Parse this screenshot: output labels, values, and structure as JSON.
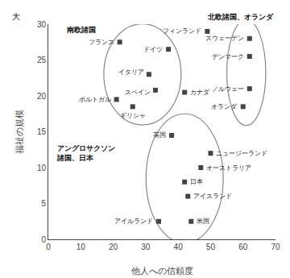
{
  "chart_data": {
    "type": "scatter",
    "x_label": "他人への信頼度",
    "y_label": "福祉の規模",
    "annotations": [
      {
        "text": "大"
      }
    ],
    "xlim": [
      0,
      70
    ],
    "ylim": [
      0,
      30
    ],
    "xticks": [
      0,
      10,
      20,
      30,
      40,
      50,
      60,
      70
    ],
    "yticks": [
      0,
      5,
      10,
      15,
      20,
      25,
      30
    ],
    "x": [
      22,
      37,
      31,
      33,
      21,
      26,
      38,
      42,
      49,
      62,
      62,
      62,
      60,
      50,
      47,
      42,
      43,
      44,
      34
    ],
    "values": [
      27.5,
      26.5,
      23.0,
      20.8,
      19.5,
      18.5,
      14.5,
      20.5,
      29.0,
      28.0,
      25.5,
      21.0,
      18.5,
      12.0,
      10.0,
      8.0,
      6.0,
      2.5,
      2.5
    ],
    "point_labels": [
      "フランス",
      "ドイツ",
      "イタリア",
      "スペイン",
      "ポルトガル",
      "ギリシャ",
      "英国",
      "カナダ",
      "フィンランド",
      "スウェーデン",
      "デンマーク",
      "ノルウェー",
      "オランダ",
      "ニュージーランド",
      "オーストラリア",
      "日本",
      "アイスランド",
      "米国",
      "アイルランド"
    ],
    "color": "#444444",
    "marker": "square",
    "grid": false,
    "groups": [
      {
        "label": "南欧諸国",
        "points": [
          "フランス",
          "ドイツ",
          "イタリア",
          "スペイン",
          "ポルトガル",
          "ギリシャ"
        ]
      },
      {
        "label": "北欧諸国、オランダ",
        "points": [
          "スウェーデン",
          "デンマーク",
          "ノルウェー",
          "オランダ"
        ]
      },
      {
        "label": "アングロサクソン\n諸国、日本",
        "points": [
          "英国",
          "ニュージーランド",
          "オーストラリア",
          "日本",
          "アイスランド",
          "米国",
          "アイルランド"
        ]
      }
    ]
  }
}
